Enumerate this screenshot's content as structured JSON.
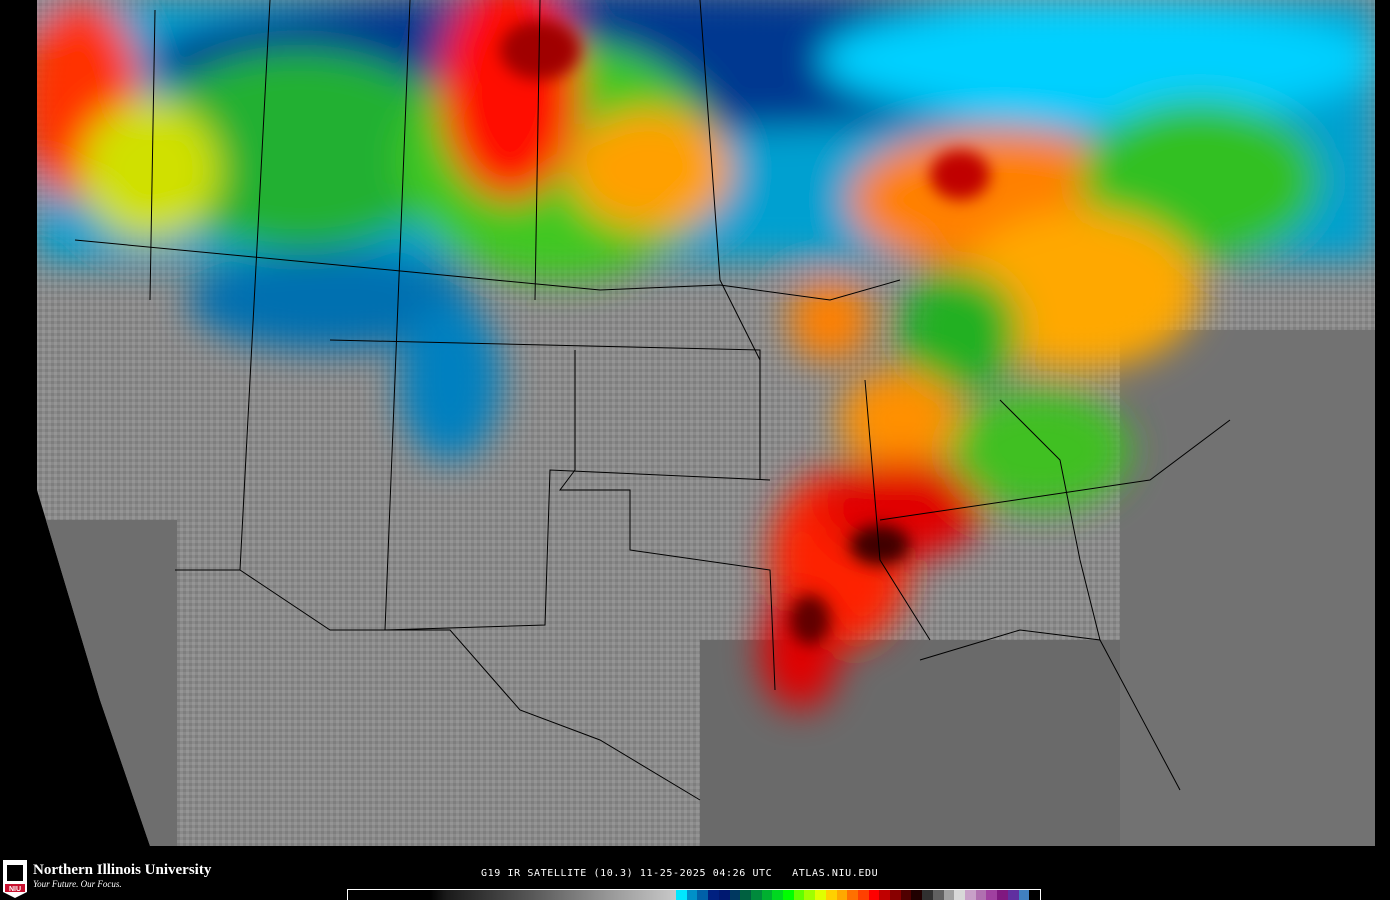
{
  "map": {
    "title": "G19 IR SATELLITE (10.3) 11-25-2025 04:26 UTC",
    "satellite": "G19",
    "channel": "IR SATELLITE (10.3)",
    "date": "11-25-2025",
    "time": "04:26 UTC",
    "source": "ATLAS.NIU.EDU",
    "caption": "G19 IR SATELLITE (10.3) 11-25-2025 04:26 UTC   ATLAS.NIU.EDU"
  },
  "branding": {
    "logo_text": "NIU",
    "name": "Northern Illinois University",
    "tagline": "Your Future. Our Focus."
  },
  "colorbar": {
    "gray_scale": [
      "#000000",
      "#c8c8c8"
    ],
    "colors": [
      "#00e8ff",
      "#0090c8",
      "#0060a8",
      "#002080",
      "#001870",
      "#003860",
      "#006040",
      "#008a3c",
      "#00b030",
      "#00d820",
      "#00ff00",
      "#60ff00",
      "#a0ff00",
      "#e0ff00",
      "#ffd000",
      "#ffa800",
      "#ff7000",
      "#ff4000",
      "#ff0000",
      "#c00000",
      "#880000",
      "#500000",
      "#200000",
      "#303030",
      "#606060",
      "#a0a0a0",
      "#d8d8d8",
      "#c8a0c8",
      "#b070b0",
      "#a040a0",
      "#801880",
      "#6030a0",
      "#4080c0",
      "#000000"
    ]
  }
}
